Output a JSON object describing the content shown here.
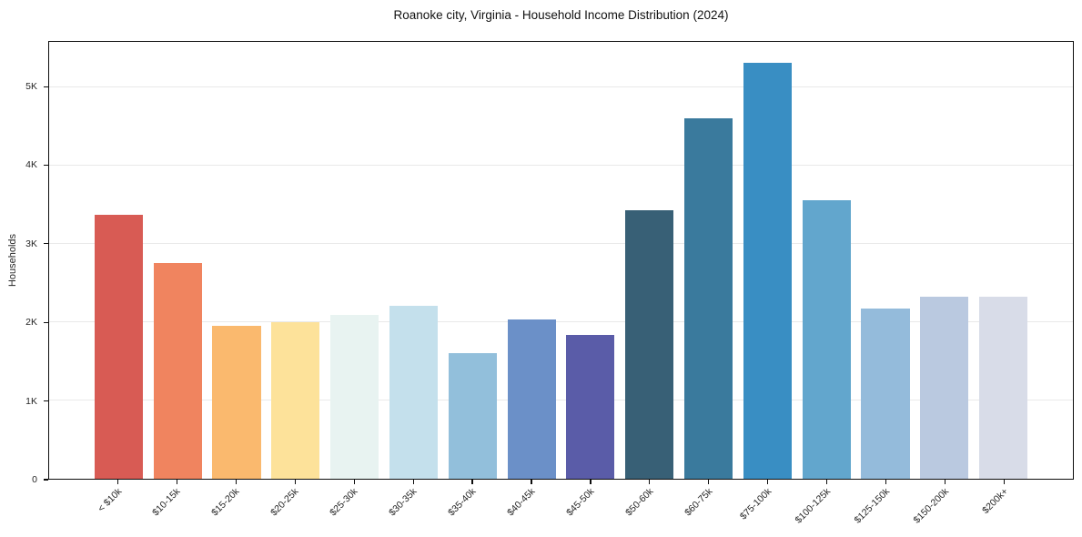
{
  "chart_data": {
    "type": "bar",
    "title": "Roanoke city, Virginia - Household Income Distribution (2024)",
    "xlabel": "",
    "ylabel": "Households",
    "ylim": [
      0,
      5580
    ],
    "grid": "horizontal",
    "legend": "none",
    "yticks": [
      {
        "value": 0,
        "label": "0"
      },
      {
        "value": 1000,
        "label": "1K"
      },
      {
        "value": 2000,
        "label": "2K"
      },
      {
        "value": 3000,
        "label": "3K"
      },
      {
        "value": 4000,
        "label": "4K"
      },
      {
        "value": 5000,
        "label": "5K"
      }
    ],
    "categories": [
      "< $10k",
      "$10-15k",
      "$15-20k",
      "$20-25k",
      "$25-30k",
      "$30-35k",
      "$35-40k",
      "$40-45k",
      "$45-50k",
      "$50-60k",
      "$60-75k",
      "$75-100k",
      "$100-125k",
      "$125-150k",
      "$150-200k",
      "$200k+"
    ],
    "values": [
      3370,
      2760,
      1955,
      2005,
      2090,
      2210,
      1610,
      2030,
      1840,
      3430,
      4600,
      5310,
      3560,
      2170,
      2320,
      2330
    ],
    "bar_colors": [
      "#d85b54",
      "#f0845f",
      "#fab96e",
      "#fde29a",
      "#e8f3f1",
      "#c4e0ec",
      "#92bfdb",
      "#6b90c8",
      "#5a5ca8",
      "#386076",
      "#3a7a9d",
      "#398ec3",
      "#62a6cd",
      "#94bbdb",
      "#bac9e0",
      "#d8dce8"
    ]
  },
  "colors": {
    "background": "#ffffff",
    "spine": "#0d0d0d",
    "gridline": "#e9e9e9",
    "tick_text": "#262626",
    "title_text": "#111111"
  }
}
